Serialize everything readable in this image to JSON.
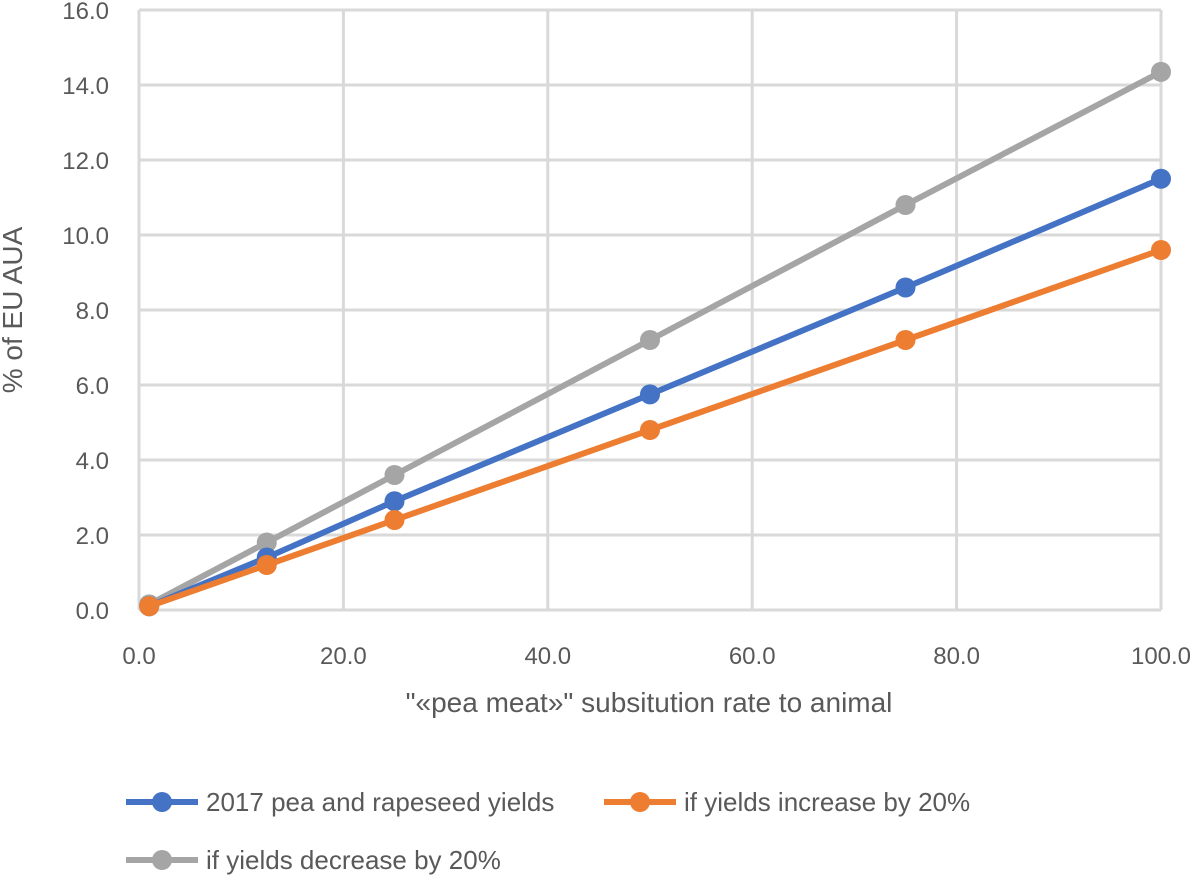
{
  "chart_data": {
    "type": "line",
    "title": "",
    "xlabel": "\"«pea meat»\" subsitution rate to animal",
    "ylabel": "% of EU AUA",
    "xlim": [
      0,
      100
    ],
    "ylim": [
      0,
      16
    ],
    "x_ticks": [
      "0.0",
      "20.0",
      "40.0",
      "60.0",
      "80.0",
      "100.0"
    ],
    "y_ticks": [
      "0.0",
      "2.0",
      "4.0",
      "6.0",
      "8.0",
      "10.0",
      "12.0",
      "14.0",
      "16.0"
    ],
    "grid": true,
    "legend_position": "bottom",
    "x": [
      1,
      12.5,
      25,
      50,
      75,
      100
    ],
    "series": [
      {
        "name": "2017 pea and rapeseed yields",
        "color": "#4472C4",
        "values": [
          0.1,
          1.4,
          2.9,
          5.75,
          8.6,
          11.5
        ]
      },
      {
        "name": "if yields increase by 20%",
        "color": "#ED7D31",
        "values": [
          0.1,
          1.2,
          2.4,
          4.8,
          7.2,
          9.6
        ]
      },
      {
        "name": "if yields decrease by 20%",
        "color": "#A5A5A5",
        "values": [
          0.15,
          1.8,
          3.6,
          7.2,
          10.8,
          14.35
        ]
      }
    ]
  }
}
